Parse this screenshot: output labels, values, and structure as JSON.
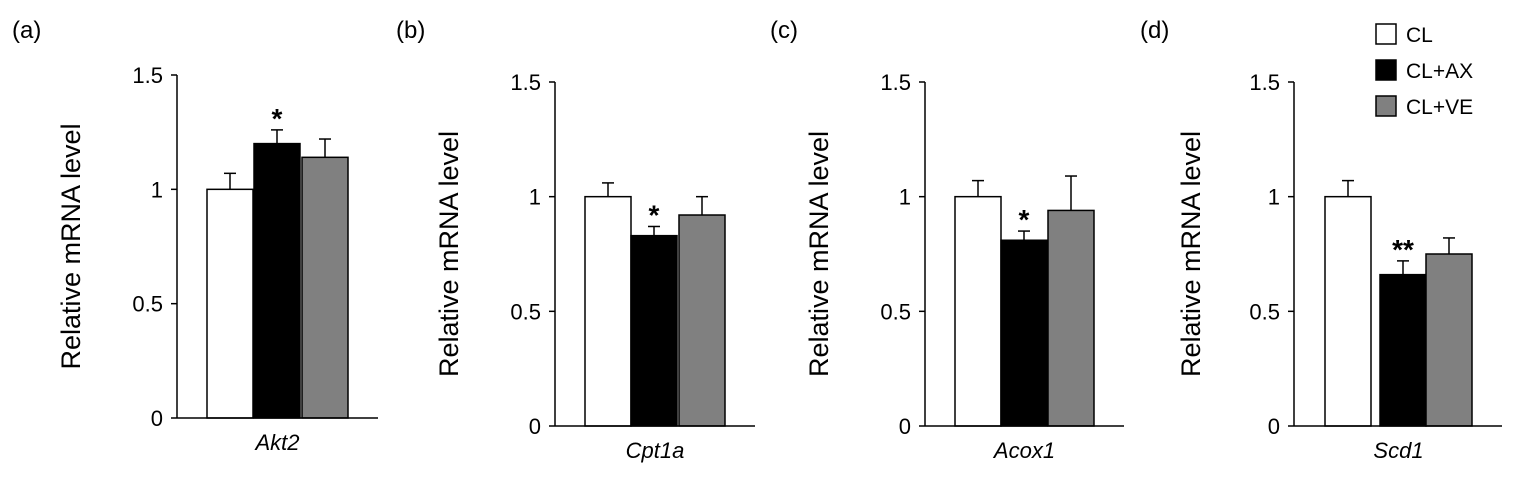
{
  "chart_data": [
    {
      "type": "bar",
      "panel_label": "(a)",
      "gene": "Akt2",
      "ylabel": "Relative mRNA level",
      "ylim": [
        0,
        1.5
      ],
      "yticks": [
        "0",
        "0.5",
        "1",
        "1.5"
      ],
      "series": [
        {
          "name": "CL",
          "value": 1.0,
          "error": 0.07,
          "sig": ""
        },
        {
          "name": "CL+AX",
          "value": 1.2,
          "error": 0.06,
          "sig": "*"
        },
        {
          "name": "CL+VE",
          "value": 1.14,
          "error": 0.08,
          "sig": ""
        }
      ]
    },
    {
      "type": "bar",
      "panel_label": "(b)",
      "gene": "Cpt1a",
      "ylabel": "Relative mRNA level",
      "ylim": [
        0,
        1.5
      ],
      "yticks": [
        "0",
        "0.5",
        "1",
        "1.5"
      ],
      "series": [
        {
          "name": "CL",
          "value": 1.0,
          "error": 0.06,
          "sig": ""
        },
        {
          "name": "CL+AX",
          "value": 0.83,
          "error": 0.04,
          "sig": "*"
        },
        {
          "name": "CL+VE",
          "value": 0.92,
          "error": 0.08,
          "sig": ""
        }
      ]
    },
    {
      "type": "bar",
      "panel_label": "(c)",
      "gene": "Acox1",
      "ylabel": "Relative mRNA level",
      "ylim": [
        0,
        1.5
      ],
      "yticks": [
        "0",
        "0.5",
        "1",
        "1.5"
      ],
      "series": [
        {
          "name": "CL",
          "value": 1.0,
          "error": 0.07,
          "sig": ""
        },
        {
          "name": "CL+AX",
          "value": 0.81,
          "error": 0.04,
          "sig": "*"
        },
        {
          "name": "CL+VE",
          "value": 0.94,
          "error": 0.15,
          "sig": ""
        }
      ]
    },
    {
      "type": "bar",
      "panel_label": "(d)",
      "gene": "Scd1",
      "ylabel": "Relative mRNA level",
      "ylim": [
        0,
        1.5
      ],
      "yticks": [
        "0",
        "0.5",
        "1",
        "1.5"
      ],
      "series": [
        {
          "name": "CL",
          "value": 1.0,
          "error": 0.07,
          "sig": ""
        },
        {
          "name": "CL+AX",
          "value": 0.66,
          "error": 0.06,
          "sig": "**"
        },
        {
          "name": "CL+VE",
          "value": 0.75,
          "error": 0.07,
          "sig": ""
        }
      ]
    }
  ],
  "legend": {
    "position": "top-right",
    "items": [
      {
        "label": "CL",
        "color": "#ffffff"
      },
      {
        "label": "CL+AX",
        "color": "#000000"
      },
      {
        "label": "CL+VE",
        "color": "#808080"
      }
    ]
  }
}
